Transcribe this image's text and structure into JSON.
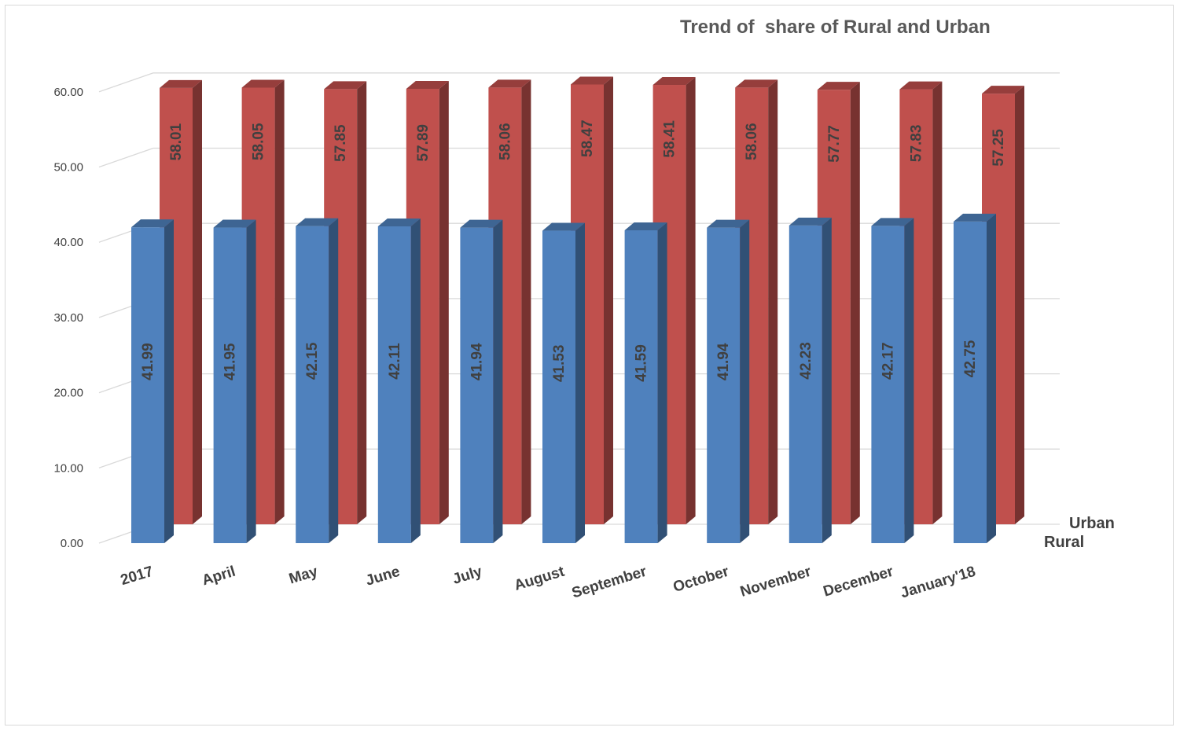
{
  "chart_data": {
    "type": "bar",
    "title": "Trend of  share of Rural and Urban",
    "categories": [
      "2017",
      "April",
      "May",
      "June",
      "July",
      "August",
      "September",
      "October",
      "November",
      "December",
      "January'18"
    ],
    "series": [
      {
        "name": "Rural",
        "values": [
          41.99,
          41.95,
          42.15,
          42.11,
          41.94,
          41.53,
          41.59,
          41.94,
          42.23,
          42.17,
          42.75
        ],
        "color": "#4f81bd"
      },
      {
        "name": "Urban",
        "values": [
          58.01,
          58.05,
          57.85,
          57.89,
          58.06,
          58.47,
          58.41,
          58.06,
          57.77,
          57.83,
          57.25
        ],
        "color": "#c0504d"
      }
    ],
    "ylim": [
      0,
      60
    ],
    "yticks": [
      "0.00",
      "10.00",
      "20.00",
      "30.00",
      "40.00",
      "50.00",
      "60.00"
    ],
    "grid": true,
    "style": "3d-clustered-column",
    "data_labels": true
  }
}
